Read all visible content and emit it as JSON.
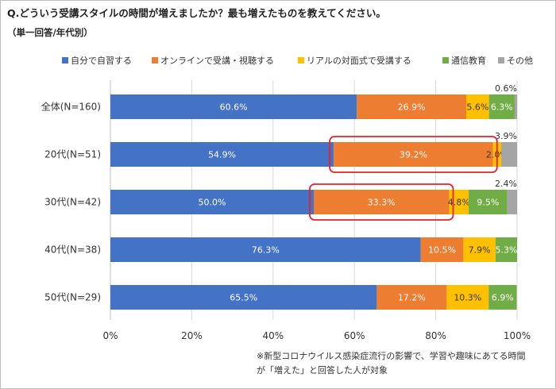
{
  "title": "Q.どういう受講スタイルの時間が増えましたか？最も増えたものを教えてください。",
  "subtitle": "（単一回答/年代別）",
  "note_lines": [
    "※新型コロナウイルス感染症流行の影響で、学習や趣味にあてる時間",
    "が「増えた」と回答した人が対象"
  ],
  "chart_data": {
    "type": "bar",
    "orientation": "horizontal",
    "stacked": true,
    "percent_stacked": true,
    "categories": [
      "全体(N=160)",
      "20代(N=51)",
      "30代(N=42)",
      "40代(N=38)",
      "50代(N=29)"
    ],
    "series": [
      {
        "name": "自分で自習する",
        "color": "#4472c4",
        "values": [
          60.6,
          54.9,
          50.0,
          76.3,
          65.5
        ]
      },
      {
        "name": "オンラインで受講・視聴する",
        "color": "#ed7d31",
        "values": [
          26.9,
          39.2,
          33.3,
          10.5,
          17.2
        ]
      },
      {
        "name": "リアルの対面式で受講する",
        "color": "#ffc000",
        "values": [
          5.6,
          2.0,
          4.8,
          7.9,
          10.3
        ]
      },
      {
        "name": "通信教育",
        "color": "#70ad47",
        "values": [
          6.3,
          0.0,
          9.5,
          5.3,
          6.9
        ]
      },
      {
        "name": "その他",
        "color": "#a5a5a5",
        "values": [
          0.6,
          3.9,
          2.4,
          0.0,
          0.0
        ]
      }
    ],
    "data_labels": [
      [
        "60.6%",
        "26.9%",
        "5.6%",
        "6.3%",
        "0.6%"
      ],
      [
        "54.9%",
        "39.2%",
        "2.0%",
        "",
        "3.9%"
      ],
      [
        "50.0%",
        "33.3%",
        "4.8%",
        "9.5%",
        "2.4%"
      ],
      [
        "76.3%",
        "10.5%",
        "7.9%",
        "5.3%",
        ""
      ],
      [
        "65.5%",
        "17.2%",
        "10.3%",
        "6.9%",
        ""
      ]
    ],
    "x_ticks": [
      "0%",
      "20%",
      "40%",
      "60%",
      "80%",
      "100%"
    ],
    "xlim": [
      0,
      100
    ],
    "grid": true,
    "legend_position": "top",
    "highlights": [
      {
        "category_index": 1,
        "series_index": 1
      },
      {
        "category_index": 2,
        "series_index": 1
      }
    ],
    "highlight_color": "#e8202a"
  }
}
